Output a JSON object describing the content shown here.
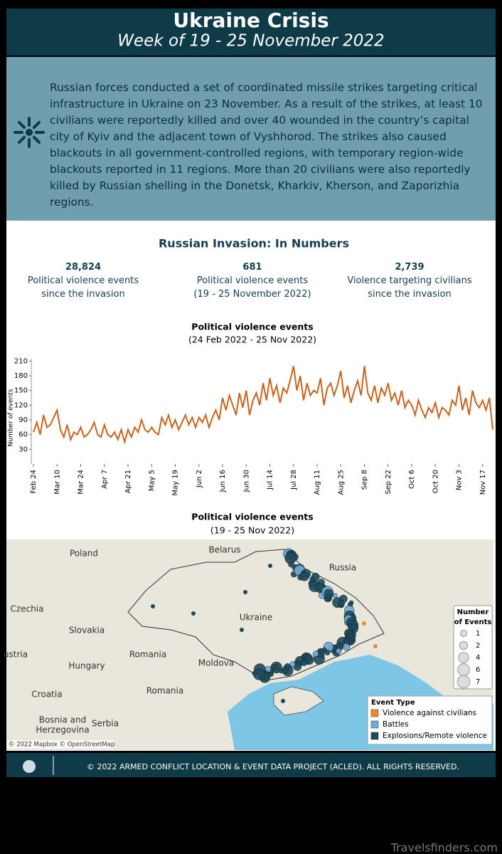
{
  "header": {
    "title": "Ukraine Crisis",
    "subtitle": "Week of 19 - 25 November 2022"
  },
  "summary": "Russian forces conducted a set of coordinated missile strikes targeting critical infrastructure in Ukraine on 23 November. As a result of the strikes, at least 10 civilians were reportedly killed and over 40 wounded in the country’s capital city of Kyiv and the adjacent town of Vyshhorod. The strikes also caused blackouts in all government-controlled regions, with temporary region-wide blackouts reported in 11 regions. More than 20 civilians were also reportedly killed by Russian shelling in the Donetsk, Kharkiv, Kherson, and Zaporizhia regions.",
  "numbers": {
    "title": "Russian Invasion: In Numbers",
    "stats": [
      {
        "value": "28,824",
        "lines": [
          "Political violence events",
          "since the invasion"
        ]
      },
      {
        "value": "681",
        "lines": [
          "Political violence events",
          "(19 - 25 November 2022)"
        ]
      },
      {
        "value": "2,739",
        "lines": [
          "Violence targeting civilians",
          "since the invasion"
        ]
      }
    ]
  },
  "chart_data": {
    "type": "line",
    "title": "Political violence events",
    "subtitle": "(24 Feb 2022 - 25 Nov 2022)",
    "y_label": "Number of events",
    "color": "#c8641e",
    "categories": [
      "Feb 24",
      null,
      null,
      null,
      null,
      null,
      null,
      "Mar 10",
      null,
      null,
      null,
      null,
      null,
      null,
      "Mar 24",
      null,
      null,
      null,
      null,
      null,
      null,
      "Apr 7",
      null,
      null,
      null,
      null,
      null,
      null,
      "Apr 21",
      null,
      null,
      null,
      null,
      null,
      null,
      "May 5",
      null,
      null,
      null,
      null,
      null,
      null,
      "May 19",
      null,
      null,
      null,
      null,
      null,
      null,
      "Jun 2",
      null,
      null,
      null,
      null,
      null,
      null,
      "Jun 16",
      null,
      null,
      null,
      null,
      null,
      null,
      "Jun 30",
      null,
      null,
      null,
      null,
      null,
      null,
      "Jul 14",
      null,
      null,
      null,
      null,
      null,
      null,
      "Jul 28",
      null,
      null,
      null,
      null,
      null,
      null,
      "Aug 11",
      null,
      null,
      null,
      null,
      null,
      null,
      "Aug 25",
      null,
      null,
      null,
      null,
      null,
      null,
      "Sep 8",
      null,
      null,
      null,
      null,
      null,
      null,
      "Sep 22",
      null,
      null,
      null,
      null,
      null,
      null,
      "Oct 6",
      null,
      null,
      null,
      null,
      null,
      null,
      "Oct 20",
      null,
      null,
      null,
      null,
      null,
      null,
      "Nov 3",
      null,
      null,
      null,
      null,
      null,
      null,
      "Nov 17",
      null,
      null,
      null
    ],
    "values": [
      65,
      85,
      60,
      100,
      75,
      80,
      95,
      110,
      70,
      55,
      80,
      50,
      65,
      60,
      75,
      55,
      60,
      70,
      85,
      60,
      55,
      80,
      60,
      55,
      65,
      50,
      70,
      45,
      70,
      55,
      75,
      65,
      90,
      70,
      65,
      75,
      65,
      60,
      95,
      80,
      100,
      75,
      90,
      70,
      85,
      100,
      80,
      95,
      75,
      95,
      85,
      100,
      75,
      95,
      110,
      90,
      135,
      110,
      140,
      120,
      100,
      145,
      115,
      150,
      100,
      130,
      145,
      120,
      165,
      130,
      175,
      140,
      160,
      125,
      155,
      145,
      170,
      200,
      150,
      180,
      130,
      165,
      140,
      150,
      145,
      175,
      120,
      155,
      165,
      140,
      160,
      190,
      135,
      160,
      125,
      150,
      170,
      140,
      200,
      145,
      130,
      160,
      125,
      155,
      140,
      165,
      130,
      145,
      120,
      150,
      115,
      130,
      120,
      100,
      130,
      110,
      95,
      115,
      105,
      125,
      95,
      115,
      110,
      100,
      130,
      120,
      160,
      110,
      135,
      100,
      150,
      125,
      115,
      130,
      110,
      135,
      70
    ],
    "ylim": [
      0,
      215
    ],
    "yticks": [
      30,
      60,
      90,
      120,
      150,
      180,
      210
    ]
  },
  "map": {
    "title": "Political violence events",
    "subtitle": "(19 - 25 Nov 2022)",
    "places": [
      "Poland",
      "Belarus",
      "Russia",
      "Czechia",
      "Slovakia",
      "Ukraine",
      "Romania",
      "Moldova",
      "Hungary",
      "Romania",
      "ustria",
      "Croatia",
      "Bosnia and",
      "Herzegovina",
      "Serbia"
    ],
    "size_legend": {
      "title": [
        "Number",
        "of Events"
      ],
      "sizes": [
        1,
        2,
        4,
        6,
        7
      ]
    },
    "event_legend": {
      "title": "Event Type",
      "items": [
        {
          "name": "Violence against civilians",
          "color": "#f08a32"
        },
        {
          "name": "Battles",
          "color": "#74aad6"
        },
        {
          "name": "Explosions/Remote violence",
          "color": "#1e4a5a"
        }
      ]
    },
    "attribution": "© 2022 Mapbox © OpenStreetMap"
  },
  "footer": "© 2022 ARMED CONFLICT LOCATION & EVENT DATA PROJECT (ACLED). ALL RIGHTS RESERVED.",
  "watermark": "Travelsfinders.com"
}
